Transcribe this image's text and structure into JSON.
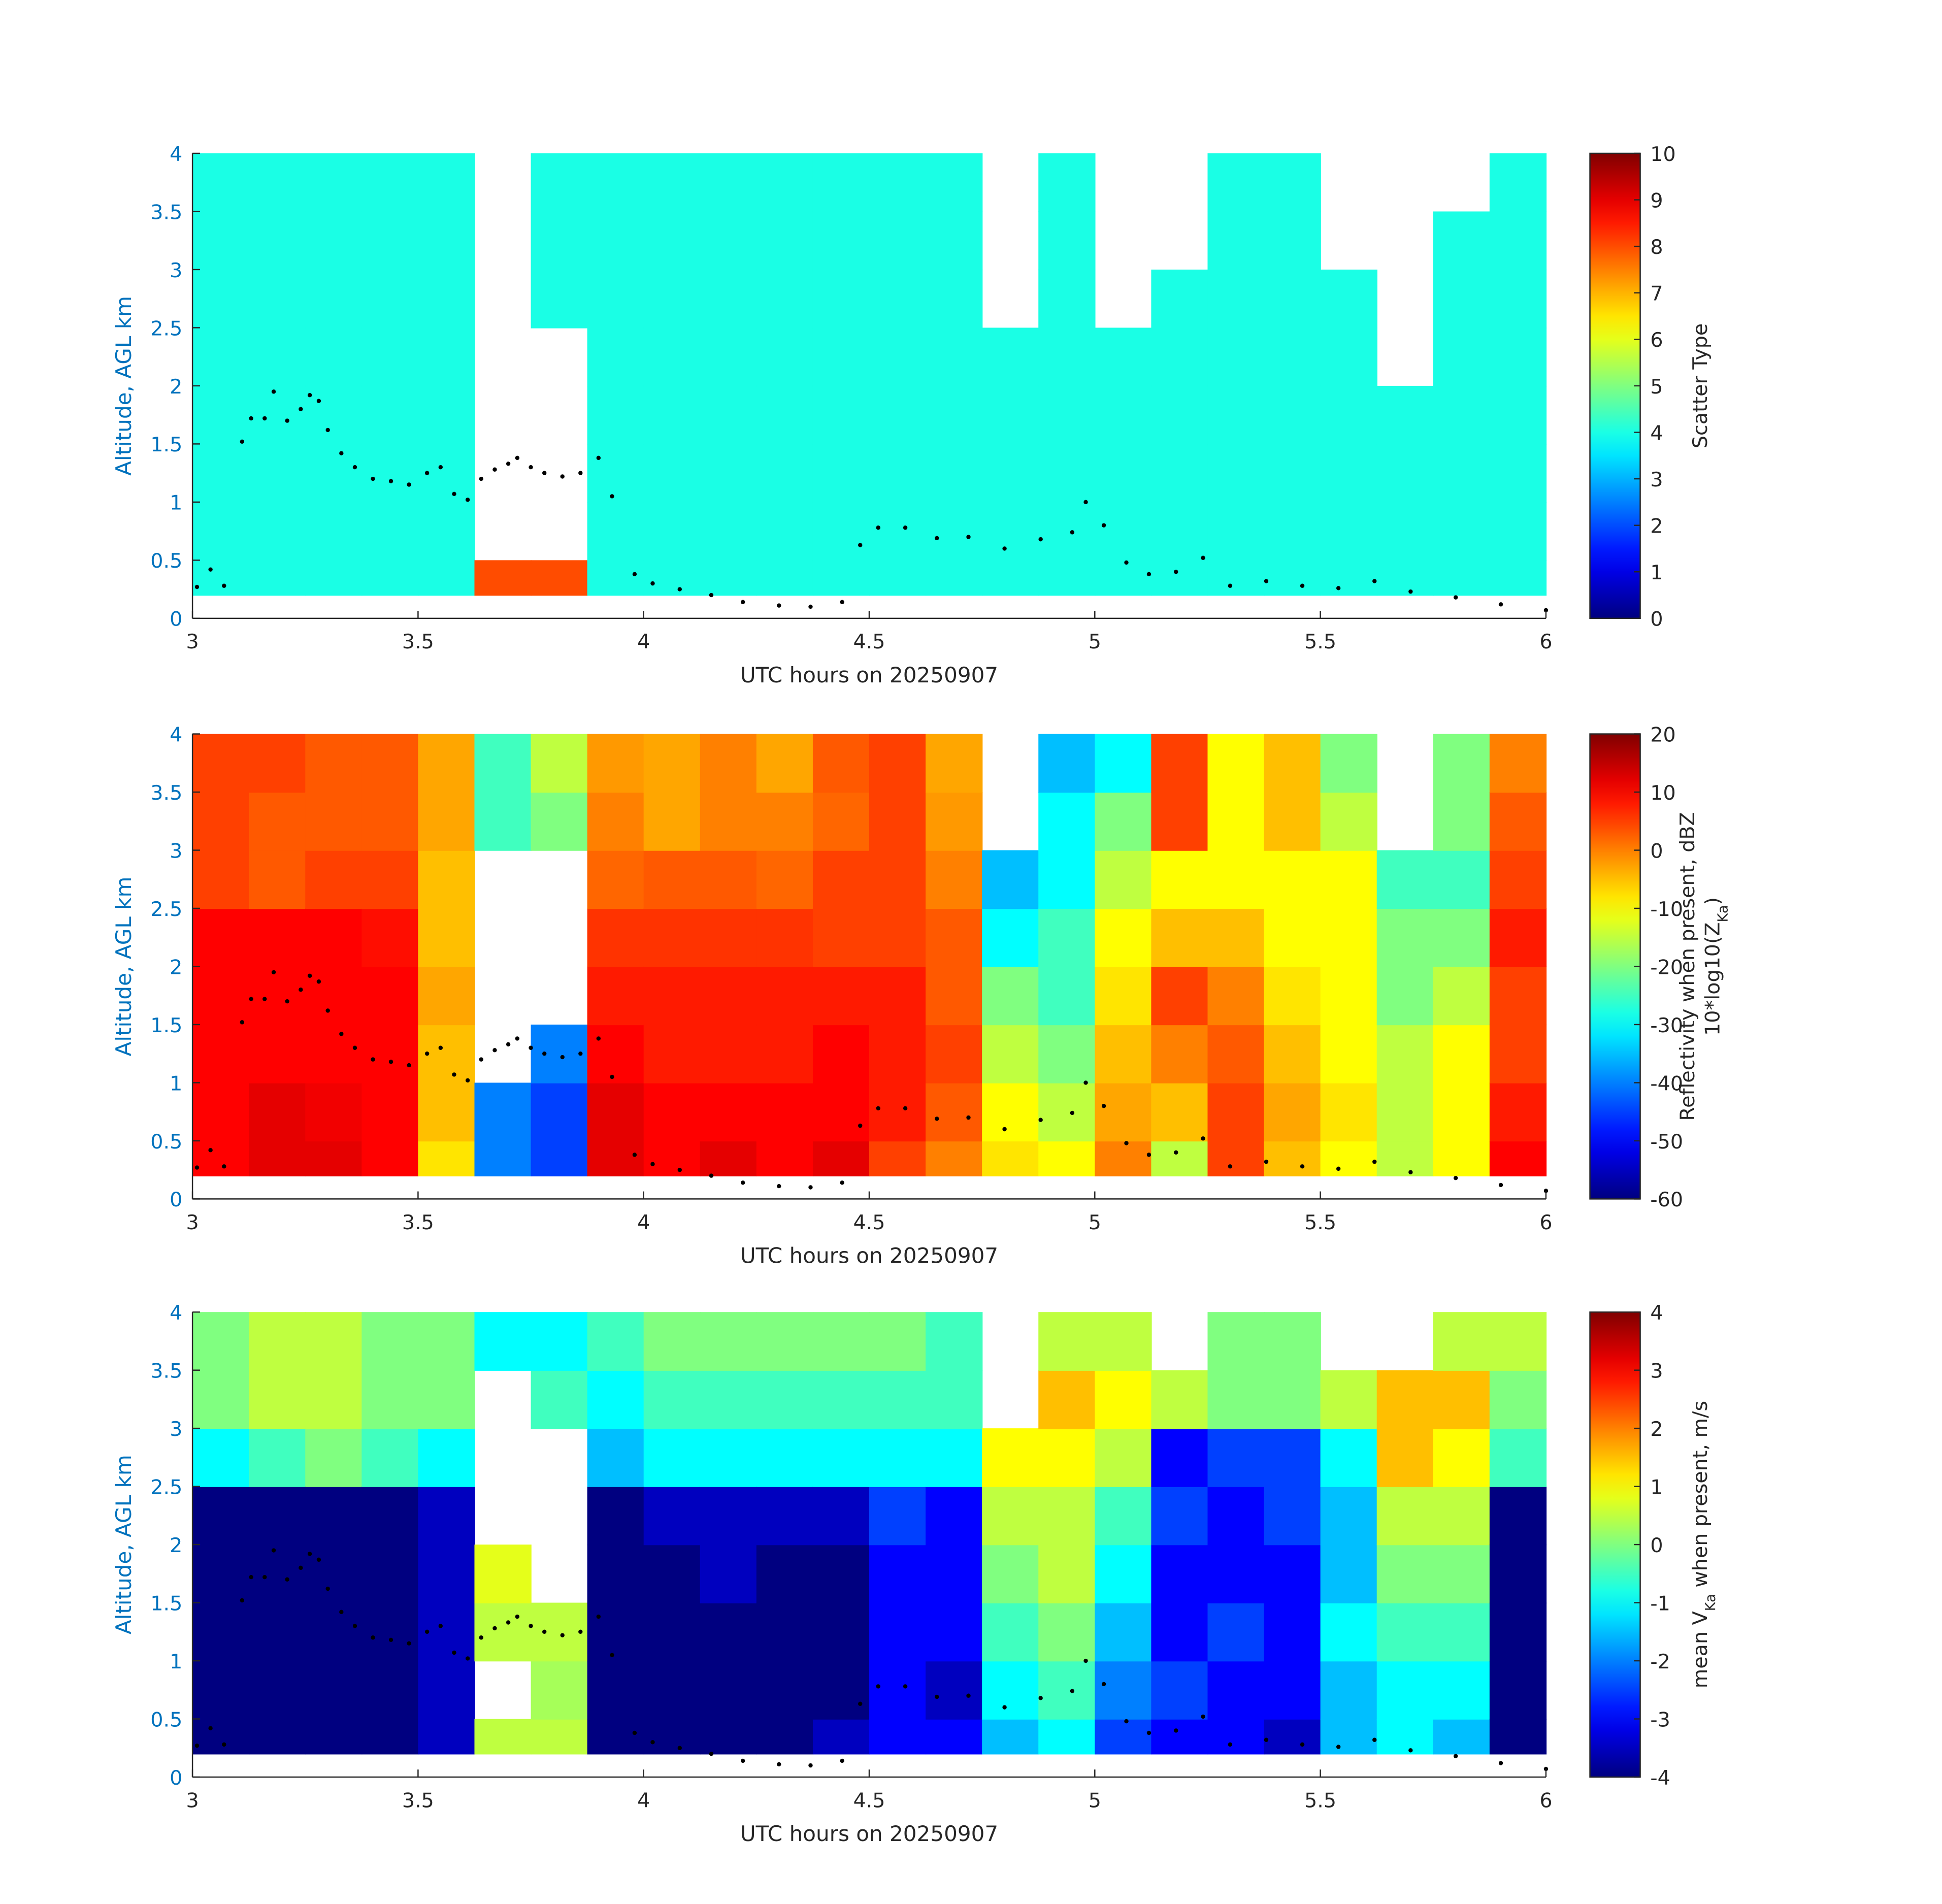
{
  "chart_data": [
    {
      "type": "heatmap",
      "colormap": "jet",
      "xlabel": "UTC hours on 20250907",
      "ylabel": "Altitude, AGL km",
      "colorbar_label": [
        [
          {
            "text": "Scatter Type"
          }
        ]
      ],
      "xlim": [
        3,
        6
      ],
      "xticks": [
        3,
        3.5,
        4,
        4.5,
        5,
        5.5,
        6
      ],
      "ylim": [
        0,
        4
      ],
      "yticks": [
        0,
        0.5,
        1,
        1.5,
        2,
        2.5,
        3,
        3.5,
        4
      ],
      "clim": [
        0,
        10
      ],
      "cticks": [
        0,
        1,
        2,
        3,
        4,
        5,
        6,
        7,
        8,
        9,
        10
      ],
      "x_edges": [
        3,
        3.125,
        3.25,
        3.375,
        3.5,
        3.625,
        3.75,
        3.875,
        4,
        4.125,
        4.25,
        4.375,
        4.5,
        4.625,
        4.75,
        4.875,
        5,
        5.125,
        5.25,
        5.375,
        5.5,
        5.625,
        5.75,
        5.875,
        6
      ],
      "y_edges": [
        0.2,
        0.5,
        1,
        1.5,
        2,
        2.5,
        3,
        3.5,
        4
      ],
      "z": [
        [
          4,
          4,
          4,
          4,
          4,
          4,
          4,
          4
        ],
        [
          4,
          4,
          4,
          4,
          4,
          4,
          4,
          4
        ],
        [
          4,
          4,
          4,
          4,
          4,
          4,
          4,
          4
        ],
        [
          4,
          4,
          4,
          4,
          4,
          4,
          4,
          4
        ],
        [
          4,
          4,
          4,
          4,
          4,
          4,
          4,
          4
        ],
        [
          8,
          null,
          null,
          null,
          null,
          null,
          null,
          null
        ],
        [
          8,
          null,
          null,
          null,
          null,
          4,
          4,
          4
        ],
        [
          4,
          4,
          4,
          4,
          4,
          4,
          4,
          4
        ],
        [
          4,
          4,
          4,
          4,
          4,
          4,
          4,
          4
        ],
        [
          4,
          4,
          4,
          4,
          4,
          4,
          4,
          4
        ],
        [
          4,
          4,
          4,
          4,
          4,
          4,
          4,
          4
        ],
        [
          4,
          4,
          4,
          4,
          4,
          4,
          4,
          4
        ],
        [
          4,
          4,
          4,
          4,
          4,
          4,
          4,
          4
        ],
        [
          4,
          4,
          4,
          4,
          4,
          4,
          4,
          4
        ],
        [
          4,
          4,
          4,
          4,
          4,
          null,
          null,
          null
        ],
        [
          4,
          4,
          4,
          4,
          4,
          4,
          4,
          4
        ],
        [
          4,
          4,
          4,
          4,
          4,
          null,
          null,
          null
        ],
        [
          4,
          4,
          4,
          4,
          4,
          4,
          null,
          null
        ],
        [
          4,
          4,
          4,
          4,
          4,
          4,
          4,
          4
        ],
        [
          4,
          4,
          4,
          4,
          4,
          4,
          4,
          4
        ],
        [
          4,
          4,
          4,
          4,
          4,
          4,
          null,
          null
        ],
        [
          4,
          4,
          4,
          4,
          null,
          null,
          null,
          null
        ],
        [
          4,
          4,
          4,
          4,
          4,
          4,
          4,
          null
        ],
        [
          4,
          4,
          4,
          4,
          4,
          4,
          4,
          4
        ]
      ],
      "dots": {
        "color": "#000000",
        "x": [
          3.01,
          3.04,
          3.07,
          3.11,
          3.13,
          3.16,
          3.18,
          3.21,
          3.24,
          3.26,
          3.28,
          3.3,
          3.33,
          3.36,
          3.4,
          3.44,
          3.48,
          3.52,
          3.55,
          3.58,
          3.61,
          3.64,
          3.67,
          3.7,
          3.72,
          3.75,
          3.78,
          3.82,
          3.86,
          3.9,
          3.93,
          3.98,
          4.02,
          4.08,
          4.15,
          4.22,
          4.3,
          4.37,
          4.44,
          4.48,
          4.52,
          4.58,
          4.65,
          4.72,
          4.8,
          4.88,
          4.95,
          4.98,
          5.02,
          5.07,
          5.12,
          5.18,
          5.24,
          5.3,
          5.38,
          5.46,
          5.54,
          5.62,
          5.7,
          5.8,
          5.9,
          6.0
        ],
        "y": [
          0.27,
          0.42,
          0.28,
          1.52,
          1.72,
          1.72,
          1.95,
          1.7,
          1.8,
          1.92,
          1.87,
          1.62,
          1.42,
          1.3,
          1.2,
          1.18,
          1.15,
          1.25,
          1.3,
          1.07,
          1.02,
          1.2,
          1.28,
          1.33,
          1.38,
          1.3,
          1.25,
          1.22,
          1.25,
          1.38,
          1.05,
          0.38,
          0.3,
          0.25,
          0.2,
          0.14,
          0.11,
          0.1,
          0.14,
          0.63,
          0.78,
          0.78,
          0.69,
          0.7,
          0.6,
          0.68,
          0.74,
          1.0,
          0.8,
          0.48,
          0.38,
          0.4,
          0.52,
          0.28,
          0.32,
          0.28,
          0.26,
          0.32,
          0.23,
          0.18,
          0.12,
          0.07
        ]
      }
    },
    {
      "type": "heatmap",
      "colormap": "jet",
      "xlabel": "UTC hours on 20250907",
      "ylabel": "Altitude, AGL km",
      "colorbar_label": [
        [
          {
            "text": "Reflectivity when present, dBZ"
          }
        ],
        [
          {
            "text": "10*log10(Z"
          },
          {
            "text": "Ka",
            "sub": true
          },
          {
            "text": ")"
          }
        ]
      ],
      "xlim": [
        3,
        6
      ],
      "xticks": [
        3,
        3.5,
        4,
        4.5,
        5,
        5.5,
        6
      ],
      "ylim": [
        0,
        4
      ],
      "yticks": [
        0,
        0.5,
        1,
        1.5,
        2,
        2.5,
        3,
        3.5,
        4
      ],
      "clim": [
        -60,
        20
      ],
      "cticks": [
        -60,
        -50,
        -40,
        -30,
        -20,
        -10,
        0,
        10,
        20
      ],
      "x_edges": [
        3,
        3.125,
        3.25,
        3.375,
        3.5,
        3.625,
        3.75,
        3.875,
        4,
        4.125,
        4.25,
        4.375,
        4.5,
        4.625,
        4.75,
        4.875,
        5,
        5.125,
        5.25,
        5.375,
        5.5,
        5.625,
        5.75,
        5.875,
        6
      ],
      "y_edges": [
        0.2,
        0.5,
        1,
        1.5,
        2,
        2.5,
        3,
        3.5,
        4
      ],
      "z": [
        [
          10,
          10,
          10,
          10,
          10,
          5,
          5,
          5
        ],
        [
          12,
          12,
          10,
          10,
          10,
          3,
          3,
          5
        ],
        [
          12,
          11,
          10,
          10,
          10,
          5,
          3,
          3
        ],
        [
          10,
          10,
          10,
          10,
          9,
          5,
          3,
          3
        ],
        [
          -8,
          -5,
          -5,
          -3,
          -5,
          -5,
          -3,
          -3
        ],
        [
          -40,
          -40,
          null,
          null,
          null,
          null,
          -25,
          -25
        ],
        [
          -45,
          -45,
          -40,
          null,
          null,
          null,
          -20,
          -15
        ],
        [
          12,
          12,
          10,
          8,
          6,
          2,
          0,
          -2
        ],
        [
          10,
          10,
          8,
          8,
          6,
          3,
          -3,
          -3
        ],
        [
          12,
          10,
          8,
          8,
          6,
          3,
          0,
          0
        ],
        [
          10,
          10,
          8,
          8,
          6,
          2,
          0,
          -3
        ],
        [
          12,
          10,
          10,
          8,
          5,
          5,
          2,
          3
        ],
        [
          5,
          8,
          8,
          8,
          5,
          5,
          5,
          5
        ],
        [
          0,
          3,
          5,
          3,
          3,
          0,
          -2,
          -3
        ],
        [
          -8,
          -10,
          -15,
          -20,
          -30,
          -35,
          null,
          null
        ],
        [
          -10,
          -15,
          -20,
          -25,
          -25,
          -30,
          -30,
          -35
        ],
        [
          0,
          -3,
          -5,
          -8,
          -10,
          -15,
          -20,
          -30
        ],
        [
          -15,
          -5,
          0,
          5,
          -5,
          -10,
          5,
          5
        ],
        [
          5,
          5,
          3,
          0,
          -5,
          -10,
          -10,
          -10
        ],
        [
          -5,
          -3,
          -5,
          -8,
          -10,
          -10,
          -5,
          -5
        ],
        [
          -10,
          -8,
          -10,
          -10,
          -10,
          -10,
          -15,
          -20
        ],
        [
          -15,
          -15,
          -15,
          -20,
          -20,
          -25,
          null,
          null
        ],
        [
          -10,
          -10,
          -10,
          -15,
          -20,
          -25,
          -20,
          -20
        ],
        [
          10,
          8,
          5,
          5,
          8,
          5,
          3,
          0
        ]
      ],
      "dots": {
        "color": "#000000",
        "x": [
          3.01,
          3.04,
          3.07,
          3.11,
          3.13,
          3.16,
          3.18,
          3.21,
          3.24,
          3.26,
          3.28,
          3.3,
          3.33,
          3.36,
          3.4,
          3.44,
          3.48,
          3.52,
          3.55,
          3.58,
          3.61,
          3.64,
          3.67,
          3.7,
          3.72,
          3.75,
          3.78,
          3.82,
          3.86,
          3.9,
          3.93,
          3.98,
          4.02,
          4.08,
          4.15,
          4.22,
          4.3,
          4.37,
          4.44,
          4.48,
          4.52,
          4.58,
          4.65,
          4.72,
          4.8,
          4.88,
          4.95,
          4.98,
          5.02,
          5.07,
          5.12,
          5.18,
          5.24,
          5.3,
          5.38,
          5.46,
          5.54,
          5.62,
          5.7,
          5.8,
          5.9,
          6.0
        ],
        "y": [
          0.27,
          0.42,
          0.28,
          1.52,
          1.72,
          1.72,
          1.95,
          1.7,
          1.8,
          1.92,
          1.87,
          1.62,
          1.42,
          1.3,
          1.2,
          1.18,
          1.15,
          1.25,
          1.3,
          1.07,
          1.02,
          1.2,
          1.28,
          1.33,
          1.38,
          1.3,
          1.25,
          1.22,
          1.25,
          1.38,
          1.05,
          0.38,
          0.3,
          0.25,
          0.2,
          0.14,
          0.11,
          0.1,
          0.14,
          0.63,
          0.78,
          0.78,
          0.69,
          0.7,
          0.6,
          0.68,
          0.74,
          1.0,
          0.8,
          0.48,
          0.38,
          0.4,
          0.52,
          0.28,
          0.32,
          0.28,
          0.26,
          0.32,
          0.23,
          0.18,
          0.12,
          0.07
        ]
      }
    },
    {
      "type": "heatmap",
      "colormap": "jet",
      "xlabel": "UTC hours on 20250907",
      "ylabel": "Altitude, AGL km",
      "colorbar_label": [
        [
          {
            "text": "mean V"
          },
          {
            "text": "Ka",
            "sub": true
          },
          {
            "text": " when present, m/s"
          }
        ]
      ],
      "xlim": [
        3,
        6
      ],
      "xticks": [
        3,
        3.5,
        4,
        4.5,
        5,
        5.5,
        6
      ],
      "ylim": [
        0,
        4
      ],
      "yticks": [
        0,
        0.5,
        1,
        1.5,
        2,
        2.5,
        3,
        3.5,
        4
      ],
      "clim": [
        -4,
        4
      ],
      "cticks": [
        -4,
        -3,
        -2,
        -1,
        0,
        1,
        2,
        3,
        4
      ],
      "x_edges": [
        3,
        3.125,
        3.25,
        3.375,
        3.5,
        3.625,
        3.75,
        3.875,
        4,
        4.125,
        4.25,
        4.375,
        4.5,
        4.625,
        4.75,
        4.875,
        5,
        5.125,
        5.25,
        5.375,
        5.5,
        5.625,
        5.75,
        5.875,
        6
      ],
      "y_edges": [
        0.2,
        0.5,
        1,
        1.5,
        2,
        2.5,
        3,
        3.5,
        4
      ],
      "z": [
        [
          -4,
          -4,
          -4,
          -4,
          -4,
          -1,
          0,
          0
        ],
        [
          -4,
          -4,
          -4,
          -4,
          -4,
          -0.5,
          0.5,
          0.5
        ],
        [
          -4,
          -4,
          -4,
          -4,
          -4,
          0,
          0.5,
          0.5
        ],
        [
          -4,
          -4,
          -4,
          -4,
          -4,
          -0.5,
          0,
          0
        ],
        [
          -3.5,
          -3.5,
          -3.5,
          -3.5,
          -3.5,
          -1,
          0,
          0
        ],
        [
          0.5,
          null,
          0.5,
          0.8,
          null,
          null,
          null,
          -1
        ],
        [
          0.5,
          0.3,
          0.5,
          null,
          null,
          null,
          -0.5,
          -1
        ],
        [
          -4,
          -4,
          -4,
          -4,
          -4,
          -1.5,
          -1,
          -0.5
        ],
        [
          -4,
          -4,
          -4,
          -4,
          -3.5,
          -1,
          -0.5,
          0
        ],
        [
          -4,
          -4,
          -4,
          -3.5,
          -3.5,
          -1,
          -0.5,
          0
        ],
        [
          -4,
          -4,
          -4,
          -4,
          -3.5,
          -1,
          -0.5,
          0
        ],
        [
          -3.5,
          -4,
          -4,
          -4,
          -3.5,
          -1,
          -0.5,
          0
        ],
        [
          -3,
          -3,
          -3,
          -3,
          -2.5,
          -1,
          -0.5,
          0
        ],
        [
          -3,
          -3.5,
          -3,
          -3,
          -3,
          -1,
          -0.5,
          -0.5
        ],
        [
          -1.5,
          -1,
          -0.5,
          0,
          0.5,
          1,
          null,
          null
        ],
        [
          -1,
          -0.5,
          0,
          0.5,
          0.5,
          1,
          1.5,
          0.5
        ],
        [
          -2.5,
          -2,
          -1.5,
          -1,
          -0.5,
          0.5,
          1,
          0.5
        ],
        [
          -3,
          -2.5,
          -3,
          -3,
          -2.5,
          -3,
          0.5,
          null
        ],
        [
          -3,
          -3,
          -2.5,
          -3,
          -3,
          -2.5,
          0,
          0
        ],
        [
          -3.5,
          -3,
          -3,
          -3,
          -2.5,
          -2.5,
          0,
          0
        ],
        [
          -1.5,
          -1.5,
          -1,
          -1.5,
          -1.5,
          -1,
          0.5,
          null
        ],
        [
          -1,
          -1,
          -0.5,
          0,
          0.5,
          1.5,
          1.5,
          null
        ],
        [
          -1.5,
          -1,
          -0.5,
          0,
          0.5,
          1,
          1.5,
          0.5
        ],
        [
          -4,
          -4,
          -4,
          -4,
          -4,
          -0.5,
          0,
          0.5
        ]
      ],
      "dots": {
        "color": "#000000",
        "x": [
          3.01,
          3.04,
          3.07,
          3.11,
          3.13,
          3.16,
          3.18,
          3.21,
          3.24,
          3.26,
          3.28,
          3.3,
          3.33,
          3.36,
          3.4,
          3.44,
          3.48,
          3.52,
          3.55,
          3.58,
          3.61,
          3.64,
          3.67,
          3.7,
          3.72,
          3.75,
          3.78,
          3.82,
          3.86,
          3.9,
          3.93,
          3.98,
          4.02,
          4.08,
          4.15,
          4.22,
          4.3,
          4.37,
          4.44,
          4.48,
          4.52,
          4.58,
          4.65,
          4.72,
          4.8,
          4.88,
          4.95,
          4.98,
          5.02,
          5.07,
          5.12,
          5.18,
          5.24,
          5.3,
          5.38,
          5.46,
          5.54,
          5.62,
          5.7,
          5.8,
          5.9,
          6.0
        ],
        "y": [
          0.27,
          0.42,
          0.28,
          1.52,
          1.72,
          1.72,
          1.95,
          1.7,
          1.8,
          1.92,
          1.87,
          1.62,
          1.42,
          1.3,
          1.2,
          1.18,
          1.15,
          1.25,
          1.3,
          1.07,
          1.02,
          1.2,
          1.28,
          1.33,
          1.38,
          1.3,
          1.25,
          1.22,
          1.25,
          1.38,
          1.05,
          0.38,
          0.3,
          0.25,
          0.2,
          0.14,
          0.11,
          0.1,
          0.14,
          0.63,
          0.78,
          0.78,
          0.69,
          0.7,
          0.6,
          0.68,
          0.74,
          1.0,
          0.8,
          0.48,
          0.38,
          0.4,
          0.52,
          0.28,
          0.32,
          0.28,
          0.26,
          0.32,
          0.23,
          0.18,
          0.12,
          0.07
        ]
      }
    }
  ]
}
